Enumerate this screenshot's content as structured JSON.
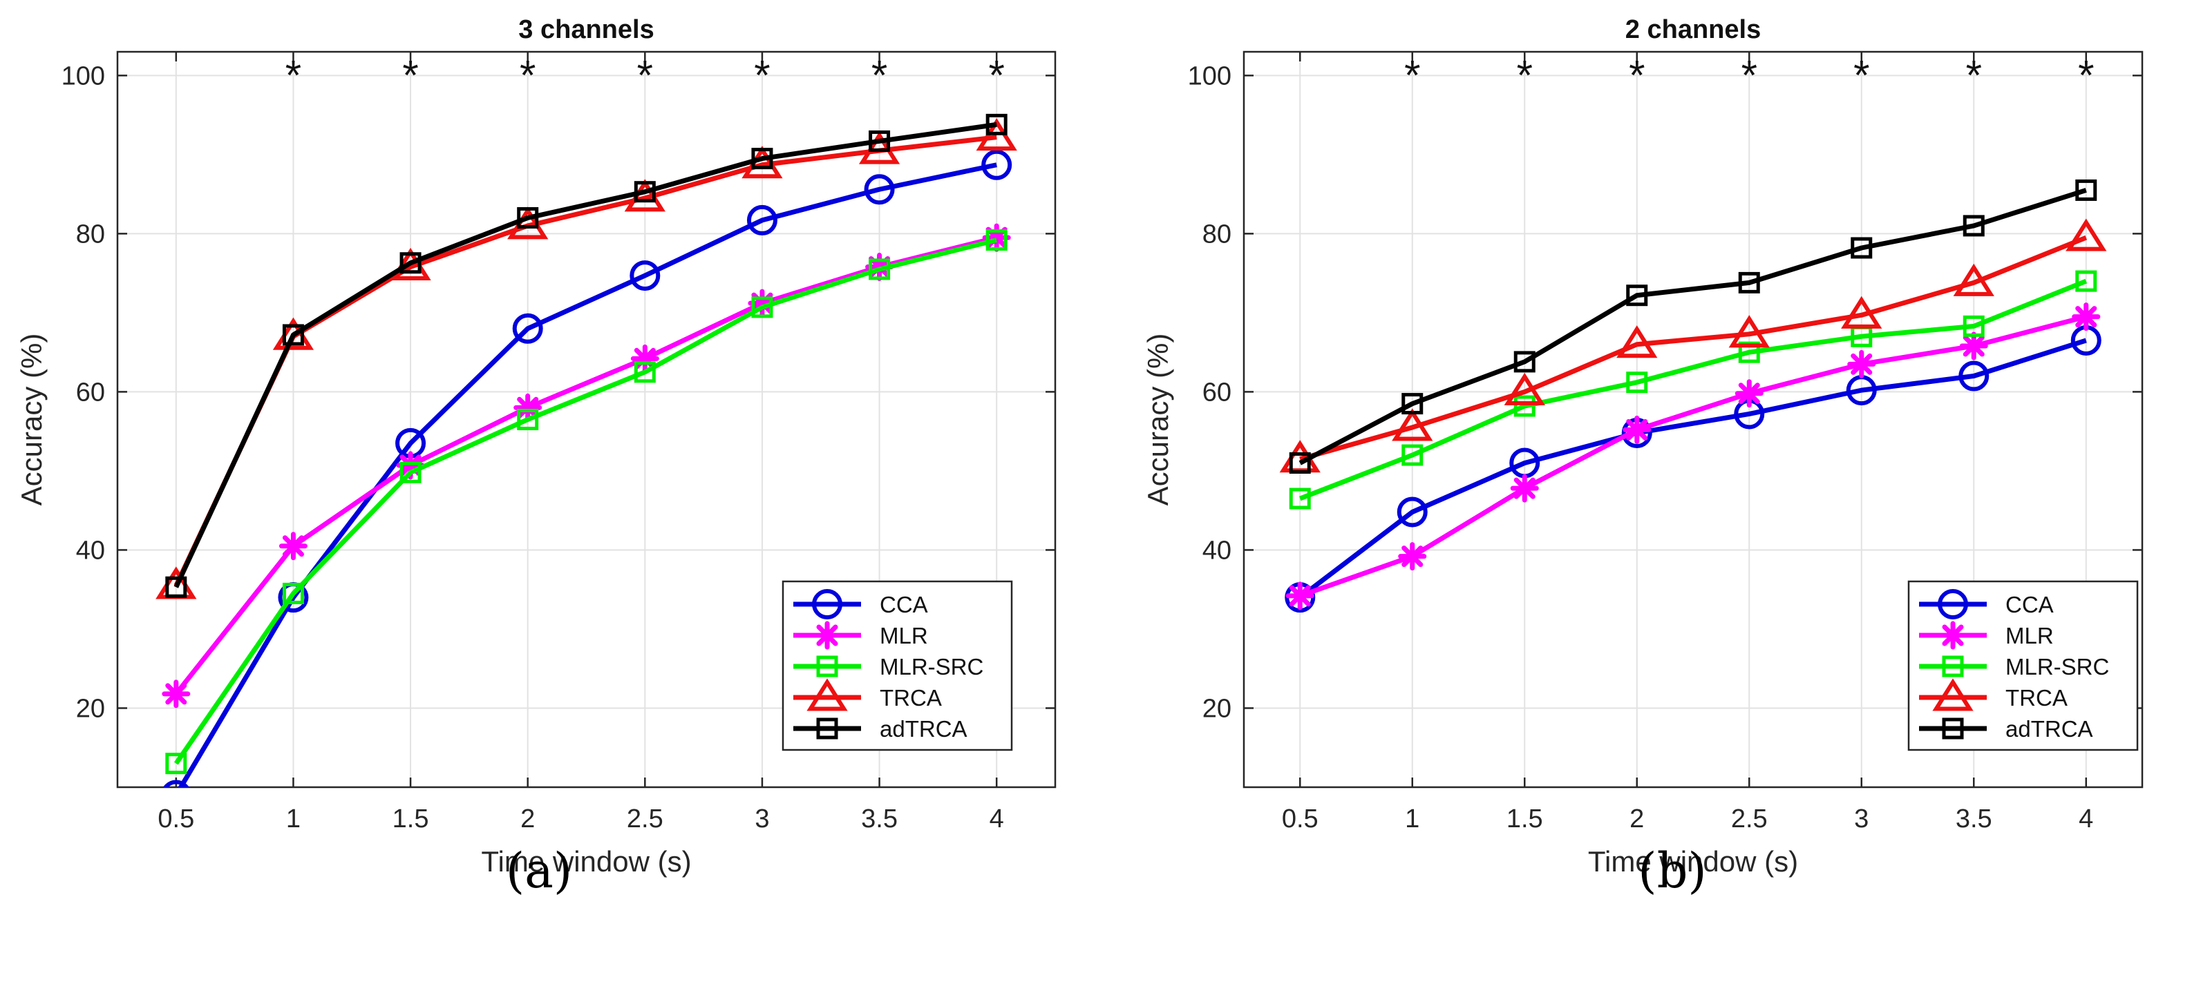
{
  "colors": {
    "CCA": "#0000dd",
    "MLR": "#ff00ff",
    "MLR-SRC": "#00ee00",
    "TRCA": "#ee1111",
    "adTRCA": "#000000",
    "grid": "#e2e2e2",
    "axis": "#262626"
  },
  "chart_data": [
    {
      "type": "line",
      "panel_label": "(a)",
      "title": "3 channels",
      "xlabel": "Time window (s)",
      "ylabel": "Accuracy (%)",
      "xlim": [
        0.25,
        4.25
      ],
      "ylim": [
        10,
        103
      ],
      "x": [
        0.5,
        1,
        1.5,
        2,
        2.5,
        3,
        3.5,
        4
      ],
      "x_tick_labels": [
        "0.5",
        "1",
        "1.5",
        "2",
        "2.5",
        "3",
        "3.5",
        "4"
      ],
      "y_ticks": [
        20,
        40,
        60,
        80,
        100
      ],
      "grid": true,
      "legend_position": "bottom-right",
      "series": [
        {
          "name": "CCA",
          "marker": "circle",
          "values": [
            9,
            34,
            53.5,
            68,
            74.7,
            81.7,
            85.6,
            88.7
          ]
        },
        {
          "name": "MLR",
          "marker": "asterisk",
          "values": [
            21.8,
            40.5,
            50.7,
            58,
            64.2,
            71.2,
            75.8,
            79.5
          ]
        },
        {
          "name": "MLR-SRC",
          "marker": "square",
          "values": [
            13,
            34.5,
            49.8,
            56.5,
            62.5,
            70.7,
            75.5,
            79.2
          ]
        },
        {
          "name": "TRCA",
          "marker": "triangle",
          "values": [
            35.5,
            67,
            75.8,
            81,
            84.5,
            88.7,
            90.5,
            92.2
          ]
        },
        {
          "name": "adTRCA",
          "marker": "square",
          "values": [
            35.3,
            67.2,
            76.3,
            82,
            85.3,
            89.5,
            91.7,
            93.8
          ]
        }
      ],
      "significance_markers": {
        "symbol": "*",
        "y": 100,
        "x": [
          1,
          1.5,
          2,
          2.5,
          3,
          3.5,
          4
        ]
      }
    },
    {
      "type": "line",
      "panel_label": "(b)",
      "title": "2 channels",
      "xlabel": "Time window (s)",
      "ylabel": "Accuracy (%)",
      "xlim": [
        0.25,
        4.25
      ],
      "ylim": [
        10,
        103
      ],
      "x": [
        0.5,
        1,
        1.5,
        2,
        2.5,
        3,
        3.5,
        4
      ],
      "x_tick_labels": [
        "0.5",
        "1",
        "1.5",
        "2",
        "2.5",
        "3",
        "3.5",
        "4"
      ],
      "y_ticks": [
        20,
        40,
        60,
        80,
        100
      ],
      "grid": true,
      "legend_position": "bottom-right",
      "series": [
        {
          "name": "CCA",
          "marker": "circle",
          "values": [
            34,
            44.8,
            51,
            54.8,
            57.2,
            60.2,
            62,
            66.5
          ]
        },
        {
          "name": "MLR",
          "marker": "asterisk",
          "values": [
            34.2,
            39.2,
            47.8,
            55.2,
            59.8,
            63.5,
            65.8,
            69.5
          ]
        },
        {
          "name": "MLR-SRC",
          "marker": "square",
          "values": [
            46.5,
            52,
            58.2,
            61.2,
            65,
            67,
            68.3,
            74
          ]
        },
        {
          "name": "TRCA",
          "marker": "triangle",
          "values": [
            51.5,
            55.5,
            60,
            66,
            67.3,
            69.7,
            73.8,
            79.5
          ]
        },
        {
          "name": "adTRCA",
          "marker": "square",
          "values": [
            51,
            58.5,
            63.8,
            72.2,
            73.8,
            78.2,
            81,
            85.5
          ]
        }
      ],
      "significance_markers": {
        "symbol": "*",
        "y": 100,
        "x": [
          1,
          1.5,
          2,
          2.5,
          3,
          3.5,
          4
        ]
      }
    }
  ]
}
